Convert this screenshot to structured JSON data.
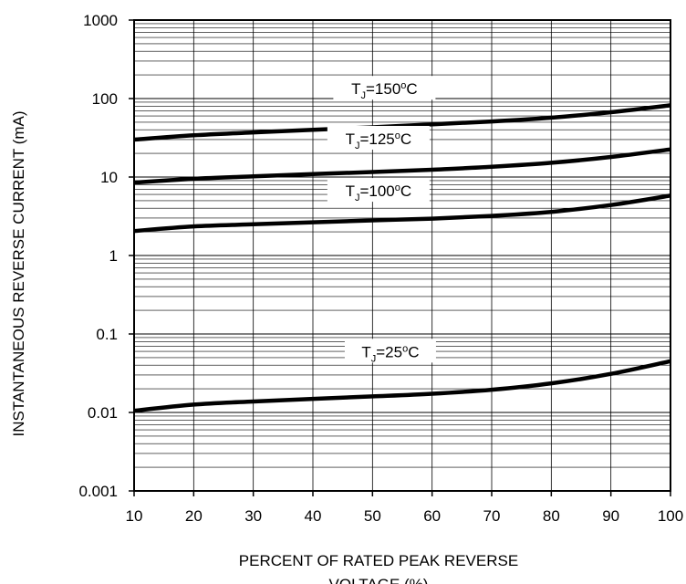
{
  "chart_data": {
    "type": "line",
    "title": "",
    "xlabel": "PERCENT OF RATED PEAK REVERSE VOLTAGE (%)",
    "xlabel_lines": [
      "PERCENT OF RATED PEAK REVERSE",
      "VOLTAGE (%)"
    ],
    "ylabel": "INSTANTANEOUS REVERSE CURRENT (mA)",
    "x_scale": "linear",
    "y_scale": "log",
    "xlim": [
      10,
      100
    ],
    "ylim": [
      0.001,
      1000
    ],
    "grid": true,
    "x_ticks": [
      10,
      20,
      30,
      40,
      50,
      60,
      70,
      80,
      90,
      100
    ],
    "x_tick_labels": [
      "10",
      "20",
      "30",
      "40",
      "50",
      "60",
      "70",
      "80",
      "90",
      "100"
    ],
    "y_ticks": [
      0.001,
      0.01,
      0.1,
      1,
      10,
      100,
      1000
    ],
    "y_tick_labels": [
      "0.001",
      "0.01",
      "0.1",
      "1",
      "10",
      "100",
      "1000"
    ],
    "series": [
      {
        "name": "TJ=150ºC",
        "label_parts": [
          "T",
          "J",
          "=150",
          "o",
          "C"
        ],
        "label_at": [
          52,
          130
        ],
        "x": [
          10,
          20,
          30,
          40,
          50,
          60,
          70,
          80,
          90,
          100
        ],
        "values": [
          30,
          34,
          37,
          40,
          43,
          47,
          51,
          57,
          67,
          82
        ]
      },
      {
        "name": "TJ=125ºC",
        "label_parts": [
          "T",
          "J",
          "=125",
          "o",
          "C"
        ],
        "label_at": [
          51,
          30
        ],
        "x": [
          10,
          20,
          30,
          40,
          50,
          60,
          70,
          80,
          90,
          100
        ],
        "values": [
          8.5,
          9.5,
          10.2,
          10.9,
          11.6,
          12.4,
          13.5,
          15.2,
          18,
          22.5
        ]
      },
      {
        "name": "TJ=100ºC",
        "label_parts": [
          "T",
          "J",
          "=100",
          "o",
          "C"
        ],
        "label_at": [
          51,
          6.5
        ],
        "x": [
          10,
          20,
          30,
          40,
          50,
          60,
          70,
          80,
          90,
          100
        ],
        "values": [
          2.05,
          2.35,
          2.5,
          2.65,
          2.8,
          2.95,
          3.2,
          3.6,
          4.4,
          5.8
        ]
      },
      {
        "name": "TJ=25ºC",
        "label_parts": [
          "T",
          "J",
          "=25",
          "o",
          "C"
        ],
        "label_at": [
          53,
          0.058
        ],
        "x": [
          10,
          20,
          30,
          40,
          50,
          60,
          70,
          80,
          90,
          100
        ],
        "values": [
          0.0105,
          0.0126,
          0.0138,
          0.0149,
          0.016,
          0.0173,
          0.0195,
          0.0235,
          0.031,
          0.045
        ]
      }
    ]
  }
}
